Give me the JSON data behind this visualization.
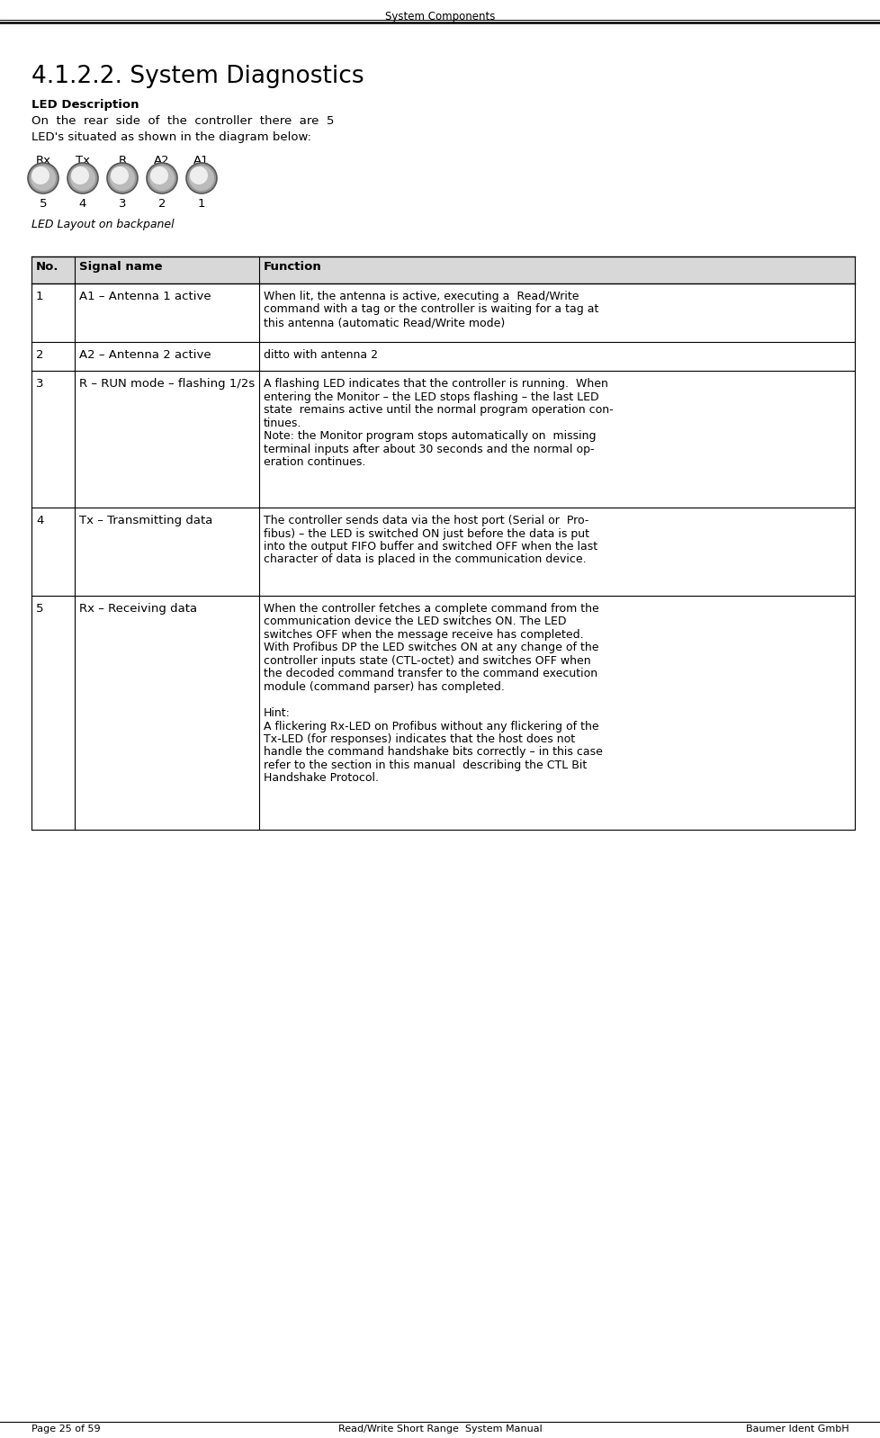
{
  "page_title": "System Components",
  "section_title": "4.1.2.2. System Diagnostics",
  "led_description_bold": "LED Description",
  "led_description_line1": "On  the  rear  side  of  the  controller  there  are  5",
  "led_description_line2": "LED's situated as shown in the diagram below:",
  "led_labels": [
    "Rx",
    "Tx",
    "R",
    "A2",
    "A1"
  ],
  "led_numbers": [
    "5",
    "4",
    "3",
    "2",
    "1"
  ],
  "led_caption": "LED Layout on backpanel",
  "table_headers": [
    "No.",
    "Signal name",
    "Function"
  ],
  "table_rows": [
    {
      "no": "1",
      "signal": "A1 – Antenna 1 active",
      "function_lines": [
        "When lit, the antenna is active, executing a  Read/Write",
        "command with a tag or the controller is waiting for a tag at",
        "this antenna (automatic Read/Write mode)"
      ]
    },
    {
      "no": "2",
      "signal": "A2 – Antenna 2 active",
      "function_lines": [
        "ditto with antenna 2"
      ]
    },
    {
      "no": "3",
      "signal": "R – RUN mode – flashing 1/2s",
      "function_lines": [
        "A flashing LED indicates that the controller is running.  When",
        "entering the Monitor – the LED stops flashing – the last LED",
        "state  remains active until the normal program operation con-",
        "tinues.",
        "Note: the Monitor program stops automatically on  missing",
        "terminal inputs after about 30 seconds and the normal op-",
        "eration continues."
      ]
    },
    {
      "no": "4",
      "signal": "Tx – Transmitting data",
      "function_lines": [
        "The controller sends data via the host port (Serial or  Pro-",
        "fibus) – the LED is switched ON just before the data is put",
        "into the output FIFO buffer and switched OFF when the last",
        "character of data is placed in the communication device."
      ]
    },
    {
      "no": "5",
      "signal": "Rx – Receiving data",
      "function_lines": [
        "When the controller fetches a complete command from the",
        "communication device the LED switches ON. The LED",
        "switches OFF when the message receive has completed.",
        "With Profibus DP the LED switches ON at any change of the",
        "controller inputs state (CTL-octet) and switches OFF when",
        "the decoded command transfer to the command execution",
        "module (command parser) has completed.",
        "",
        "Hint:",
        "A flickering Rx-LED on Profibus without any flickering of the",
        "Tx-LED (for responses) indicates that the host does not",
        "handle the command handshake bits correctly – in this case",
        "refer to the section in this manual  describing the CTL Bit",
        "Handshake Protocol."
      ]
    }
  ],
  "footer_left": "Page 25 of 59",
  "footer_center": "Read/Write Short Range  System Manual",
  "footer_right": "Baumer Ident GmbH",
  "bg_color": "#ffffff",
  "text_color": "#000000"
}
